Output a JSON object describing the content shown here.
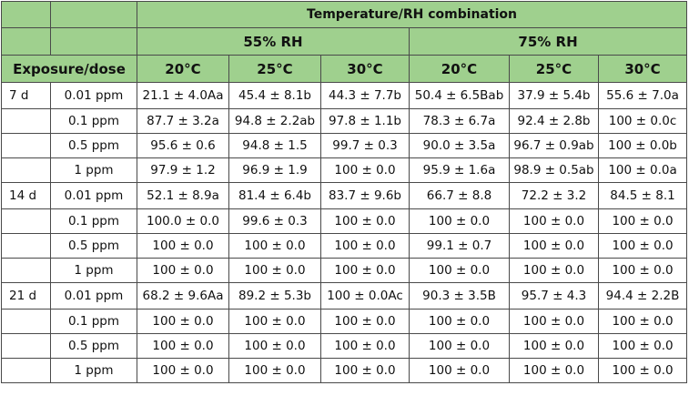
{
  "header": {
    "group_title": "Temperature/RH combination",
    "rh_groups": [
      "55% RH",
      "75% RH"
    ],
    "exposure_label": "Exposure/dose",
    "temps": [
      "20°C",
      "25°C",
      "30°C",
      "20°C",
      "25°C",
      "30°C"
    ]
  },
  "rows": [
    {
      "exposure": "7 d",
      "dose": "0.01 ppm",
      "values": [
        "21.1 ± 4.0Aa",
        "45.4 ± 8.1b",
        "44.3 ± 7.7b",
        "50.4 ± 6.5Bab",
        "37.9 ± 5.4b",
        "55.6 ± 7.0a"
      ]
    },
    {
      "exposure": "",
      "dose": "0.1 ppm",
      "values": [
        "87.7 ± 3.2a",
        "94.8 ± 2.2ab",
        "97.8 ± 1.1b",
        "78.3 ± 6.7a",
        "92.4 ± 2.8b",
        "100 ± 0.0c"
      ]
    },
    {
      "exposure": "",
      "dose": "0.5 ppm",
      "values": [
        "95.6 ± 0.6",
        "94.8 ± 1.5",
        "99.7 ± 0.3",
        "90.0 ± 3.5a",
        "96.7 ± 0.9ab",
        "100 ± 0.0b"
      ]
    },
    {
      "exposure": "",
      "dose": "1 ppm",
      "values": [
        "97.9 ± 1.2",
        "96.9 ± 1.9",
        "100 ± 0.0",
        "95.9 ± 1.6a",
        "98.9 ± 0.5ab",
        "100 ± 0.0a"
      ]
    },
    {
      "exposure": "14 d",
      "dose": "0.01 ppm",
      "values": [
        "52.1 ± 8.9a",
        "81.4 ± 6.4b",
        "83.7 ± 9.6b",
        "66.7 ± 8.8",
        "72.2 ± 3.2",
        "84.5 ± 8.1"
      ]
    },
    {
      "exposure": "",
      "dose": "0.1 ppm",
      "values": [
        "100.0 ± 0.0",
        "99.6 ± 0.3",
        "100 ± 0.0",
        "100 ± 0.0",
        "100 ± 0.0",
        "100 ± 0.0"
      ]
    },
    {
      "exposure": "",
      "dose": "0.5 ppm",
      "values": [
        "100 ± 0.0",
        "100 ± 0.0",
        "100 ± 0.0",
        "99.1 ± 0.7",
        "100 ± 0.0",
        "100 ± 0.0"
      ]
    },
    {
      "exposure": "",
      "dose": "1 ppm",
      "values": [
        "100 ± 0.0",
        "100 ± 0.0",
        "100 ± 0.0",
        "100 ± 0.0",
        "100 ± 0.0",
        "100 ± 0.0"
      ]
    },
    {
      "exposure": "21 d",
      "dose": "0.01 ppm",
      "values": [
        "68.2 ± 9.6Aa",
        "89.2 ± 5.3b",
        "100 ± 0.0Ac",
        "90.3 ± 3.5B",
        "95.7 ± 4.3",
        "94.4 ± 2.2B"
      ]
    },
    {
      "exposure": "",
      "dose": "0.1 ppm",
      "values": [
        "100 ± 0.0",
        "100 ± 0.0",
        "100 ± 0.0",
        "100 ± 0.0",
        "100 ± 0.0",
        "100 ± 0.0"
      ]
    },
    {
      "exposure": "",
      "dose": "0.5 ppm",
      "values": [
        "100 ± 0.0",
        "100 ± 0.0",
        "100 ± 0.0",
        "100 ± 0.0",
        "100 ± 0.0",
        "100 ± 0.0"
      ]
    },
    {
      "exposure": "",
      "dose": "1 ppm",
      "values": [
        "100 ± 0.0",
        "100 ± 0.0",
        "100 ± 0.0",
        "100 ± 0.0",
        "100 ± 0.0",
        "100 ± 0.0"
      ]
    }
  ],
  "colors": {
    "header_bg": "#9fd08e",
    "border": "#4a4a4a"
  }
}
